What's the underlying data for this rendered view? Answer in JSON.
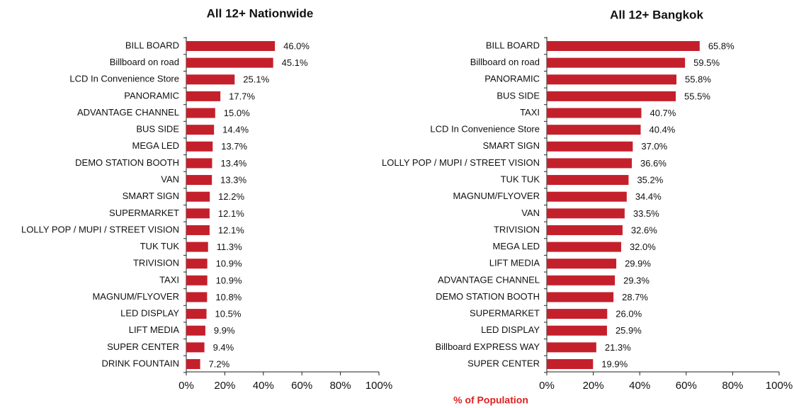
{
  "chart_data": [
    {
      "type": "barh",
      "title": "All 12+ Nationwide",
      "color": "#c4202c",
      "categories": [
        "BILL BOARD",
        "Billboard on road",
        "LCD In Convenience Store",
        "PANORAMIC",
        "ADVANTAGE CHANNEL",
        "BUS SIDE",
        "MEGA LED",
        "DEMO STATION BOOTH",
        "VAN",
        "SMART SIGN",
        "SUPERMARKET",
        "LOLLY POP / MUPI / STREET VISION",
        "TUK TUK",
        "TRIVISION",
        "TAXI",
        "MAGNUM/FLYOVER",
        "LED DISPLAY",
        "LIFT MEDIA",
        "SUPER CENTER",
        "DRINK FOUNTAIN"
      ],
      "values": [
        46.0,
        45.1,
        25.1,
        17.7,
        15.0,
        14.4,
        13.7,
        13.4,
        13.3,
        12.2,
        12.1,
        12.1,
        11.3,
        10.9,
        10.9,
        10.8,
        10.5,
        9.9,
        9.4,
        7.2
      ],
      "value_labels": [
        "46.0%",
        "45.1%",
        "25.1%",
        "17.7%",
        "15.0%",
        "14.4%",
        "13.7%",
        "13.4%",
        "13.3%",
        "12.2%",
        "12.1%",
        "12.1%",
        "11.3%",
        "10.9%",
        "10.9%",
        "10.8%",
        "10.5%",
        "9.9%",
        "9.4%",
        "7.2%"
      ],
      "xlim": [
        0,
        100
      ],
      "xticks": [
        {
          "value": 0,
          "label": "0%"
        },
        {
          "value": 20,
          "label": "20%"
        },
        {
          "value": 40,
          "label": "40%"
        },
        {
          "value": 60,
          "label": "60%"
        },
        {
          "value": 80,
          "label": "80%"
        },
        {
          "value": 100,
          "label": "100%"
        }
      ]
    },
    {
      "type": "barh",
      "title": "All 12+ Bangkok",
      "color": "#c4202c",
      "xlabel": "% of Population",
      "categories": [
        "BILL BOARD",
        "Billboard on road",
        "PANORAMIC",
        "BUS SIDE",
        "TAXI",
        "LCD In Convenience Store",
        "SMART SIGN",
        "LOLLY POP / MUPI / STREET VISION",
        "TUK TUK",
        "MAGNUM/FLYOVER",
        "VAN",
        "TRIVISION",
        "MEGA LED",
        "LIFT MEDIA",
        "ADVANTAGE CHANNEL",
        "DEMO STATION BOOTH",
        "SUPERMARKET",
        "LED DISPLAY",
        "Billboard EXPRESS WAY",
        "SUPER CENTER"
      ],
      "values": [
        65.8,
        59.5,
        55.8,
        55.5,
        40.7,
        40.4,
        37.0,
        36.6,
        35.2,
        34.4,
        33.5,
        32.6,
        32.0,
        29.9,
        29.3,
        28.7,
        26.0,
        25.9,
        21.3,
        19.9
      ],
      "value_labels": [
        "65.8%",
        "59.5%",
        "55.8%",
        "55.5%",
        "40.7%",
        "40.4%",
        "37.0%",
        "36.6%",
        "35.2%",
        "34.4%",
        "33.5%",
        "32.6%",
        "32.0%",
        "29.9%",
        "29.3%",
        "28.7%",
        "26.0%",
        "25.9%",
        "21.3%",
        "19.9%"
      ],
      "xlim": [
        0,
        100
      ],
      "xticks": [
        {
          "value": 0,
          "label": "0%"
        },
        {
          "value": 20,
          "label": "20%"
        },
        {
          "value": 40,
          "label": "40%"
        },
        {
          "value": 60,
          "label": "60%"
        },
        {
          "value": 80,
          "label": "80%"
        },
        {
          "value": 100,
          "label": "100%"
        }
      ]
    }
  ]
}
